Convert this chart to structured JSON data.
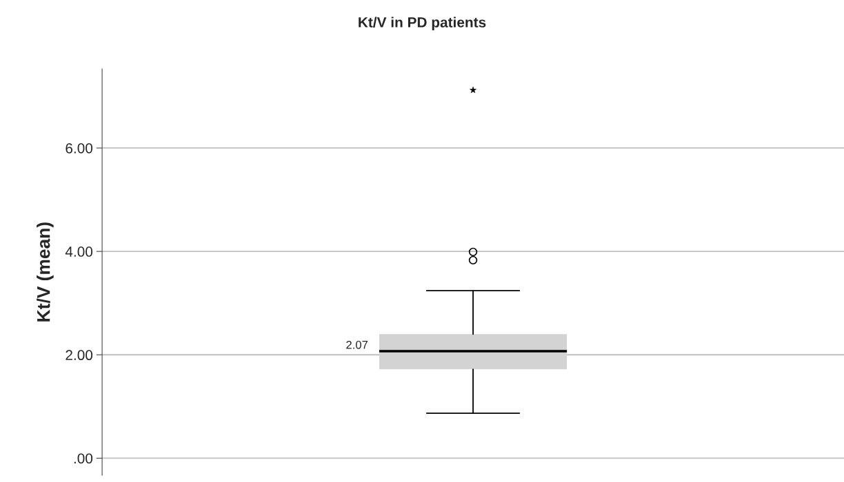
{
  "chart_data": {
    "type": "box",
    "title": "Kt/V in PD patients",
    "ylabel": "Kt/V (mean)",
    "categories": [
      null
    ],
    "boxes": [
      {
        "low": 0.87,
        "q1": 1.72,
        "median": 2.07,
        "q3": 2.4,
        "high": 3.24,
        "outliers": [
          3.83,
          3.99,
          7.12
        ]
      }
    ],
    "color": "#d3d3d3",
    "ylim": [
      -0.33,
      7.53
    ],
    "yticks": [
      {
        "value": 0,
        "label": ".00"
      },
      {
        "value": 2,
        "label": "2.00"
      },
      {
        "value": 4,
        "label": "4.00"
      },
      {
        "value": 6,
        "label": "6.00"
      }
    ],
    "grid": "y",
    "annotations": [
      "2.07"
    ]
  }
}
